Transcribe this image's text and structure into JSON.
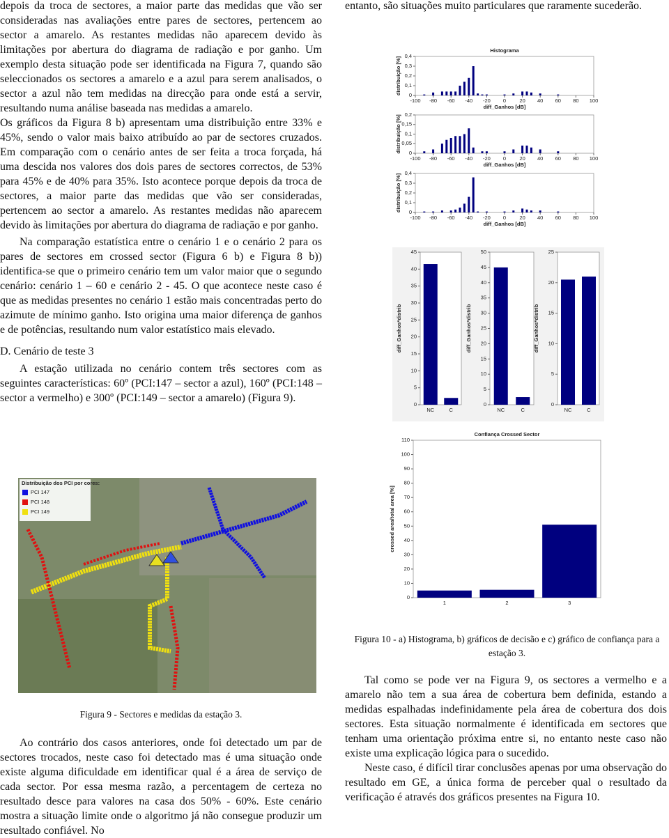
{
  "left_column": {
    "paragraphs": [
      "depois da troca de sectores, a maior parte das medidas que vão ser consideradas nas avaliações entre pares de sectores, pertencem ao sector a amarelo. As restantes medidas não aparecem devido às limitações por abertura do diagrama de radiação e por ganho. Um exemplo desta situação pode ser identificada na Figura 7, quando são seleccionados os sectores a amarelo e a azul para serem analisados, o sector a azul não tem medidas na direcção para onde está a servir, resultando numa análise baseada nas medidas a amarelo.",
      "Os gráficos da Figura 8 b) apresentam uma distribuição entre 33% e 45%, sendo o valor mais baixo atribuído ao par de sectores cruzados. Em comparação com o cenário antes de ser feita a troca forçada, há uma descida nos valores dos dois pares de sectores correctos, de 53% para 45% e de 40% para 35%. Isto acontece porque depois da troca de sectores, a maior parte das medidas que vão ser consideradas, pertencem ao sector a amarelo. As restantes medidas não aparecem devido às limitações por abertura do diagrama de radiação e por ganho.",
      "Na comparação estatística entre o cenário 1 e o cenário 2 para os pares de sectores em crossed sector (Figura 6 b) e Figura 8 b)) identifica-se que o primeiro cenário tem um valor maior que o segundo cenário: cenário 1 – 60 e cenário 2 - 45. O que acontece neste caso é que as medidas presentes no cenário 1 estão mais concentradas perto do azimute de mínimo ganho. Isto origina uma maior diferença de ganhos e de potências, resultando num valor estatístico mais elevado."
    ],
    "heading": "D. Cenário de teste 3",
    "paragraph_after_heading": "A estação utilizada no cenário contem três sectores com as seguintes características: 60º (PCI:147 – sector a azul), 160º (PCI:148 – sector a vermelho) e 300º (PCI:149 – sector a amarelo) (Figura 9).",
    "figure_9_caption": "Figura 9 - Sectores e medidas da estação 3.",
    "last_paragraph": "Ao contrário dos casos anteriores, onde foi detectado um par de sectores trocados, neste caso foi detectado mas é uma situação onde existe alguma dificuldade em identificar qual é a área de serviço de cada sector. Por essa mesma razão, a percentagem de certeza no resultado desce para valores na casa dos 50% - 60%. Este cenário mostra a situação limite onde o algoritmo já não consegue produzir um resultado confiável. No"
  },
  "map": {
    "legend_title": "Distribuição dos PCI por cores:",
    "legend": [
      {
        "label": "PCI 147",
        "color": "#1010e0"
      },
      {
        "label": "PCI 148",
        "color": "#e01010"
      },
      {
        "label": "PCI 149",
        "color": "#f0e010"
      }
    ]
  },
  "right_column": {
    "top_text": "entanto, são situações muito particulares que raramente sucederão.",
    "figure_10_caption": "Figura 10 - a) Histograma, b) gráficos de decisão e c) gráfico de confiança para a estação 3.",
    "paragraphs": [
      "Tal como se pode ver na Figura 9, os sectores a vermelho e a amarelo não tem a sua área de cobertura bem definida, estando a medidas espalhadas indefinidamente pela área de cobertura dos dois sectores. Esta situação normalmente é identificada em sectores que tenham uma orientação próxima entre si, no entanto neste caso não existe uma explicação lógica para o sucedido.",
      "Neste caso, é difícil tirar conclusões apenas por uma observação do resultado em GE, a única forma de perceber qual o resultado da verificação é através dos gráficos presentes na Figura 10."
    ]
  },
  "chart_data": [
    {
      "type": "bar",
      "title": "Histograma",
      "x_label": "diff_Ganhos [dB]",
      "y_label": "distribuição [%]",
      "color": "#00007f",
      "x": [
        -90,
        -80,
        -70,
        -65,
        -60,
        -55,
        -50,
        -45,
        -40,
        -35,
        -30,
        -25,
        -20,
        0,
        10,
        20,
        25,
        30,
        40,
        60
      ],
      "values": [
        0.01,
        0.03,
        0.04,
        0.04,
        0.04,
        0.04,
        0.1,
        0.14,
        0.18,
        0.3,
        0.02,
        0.01,
        0.01,
        0.01,
        0.02,
        0.04,
        0.04,
        0.03,
        0.02,
        0.01
      ],
      "xlim": [
        -100,
        100
      ],
      "xticks": [
        -100,
        -80,
        -60,
        -40,
        -20,
        0,
        20,
        40,
        60,
        80,
        100
      ],
      "ylim": [
        0,
        0.4
      ],
      "yticks": [
        0,
        {
          "value": 0.1,
          "label": "0,1"
        },
        {
          "value": 0.2,
          "label": "0,2"
        },
        {
          "value": 0.3,
          "label": "0,3"
        },
        {
          "value": 0.4,
          "label": "0,4"
        }
      ]
    },
    {
      "type": "bar",
      "x_label": "diff_Ganhos [dB]",
      "y_label": "distribuição [%]",
      "color": "#00007f",
      "x": [
        -90,
        -80,
        -70,
        -65,
        -60,
        -55,
        -50,
        -45,
        -40,
        -35,
        -25,
        -20,
        0,
        10,
        20,
        25,
        30,
        40,
        60
      ],
      "values": [
        0.01,
        0.02,
        0.05,
        0.07,
        0.08,
        0.09,
        0.09,
        0.1,
        0.13,
        0.03,
        0.01,
        0.01,
        0.01,
        0.02,
        0.04,
        0.04,
        0.03,
        0.02,
        0.01
      ],
      "xlim": [
        -100,
        100
      ],
      "xticks": [
        -100,
        -80,
        -60,
        -40,
        -20,
        0,
        20,
        40,
        60,
        80,
        100
      ],
      "ylim": [
        0,
        0.2
      ],
      "yticks": [
        0,
        {
          "value": 0.05,
          "label": "0,05"
        },
        {
          "value": 0.1,
          "label": "0,1"
        },
        {
          "value": 0.15,
          "label": "0,15"
        },
        {
          "value": 0.2,
          "label": "0,2"
        }
      ]
    },
    {
      "type": "bar",
      "x_label": "diff_Ganhos [dB]",
      "y_label": "distribuição [%]",
      "color": "#00007f",
      "x": [
        -90,
        -80,
        -70,
        -60,
        -55,
        -50,
        -45,
        -40,
        -35,
        -30,
        -20,
        0,
        10,
        20,
        25,
        30,
        40,
        60
      ],
      "values": [
        0.01,
        0.01,
        0.02,
        0.02,
        0.03,
        0.05,
        0.09,
        0.16,
        0.36,
        0.01,
        0.01,
        0.01,
        0.02,
        0.04,
        0.03,
        0.02,
        0.02,
        0.01
      ],
      "xlim": [
        -100,
        100
      ],
      "xticks": [
        -100,
        -80,
        -60,
        -40,
        -20,
        0,
        20,
        40,
        60,
        80,
        100
      ],
      "ylim": [
        0,
        0.4
      ],
      "yticks": [
        0,
        {
          "value": 0.1,
          "label": "0,1"
        },
        {
          "value": 0.2,
          "label": "0,2"
        },
        {
          "value": 0.3,
          "label": "0,3"
        },
        {
          "value": 0.4,
          "label": "0,4"
        }
      ]
    },
    {
      "type": "bar",
      "y_label": "diff_Ganhos*distrib",
      "color": "#00007f",
      "categories": [
        "NC",
        "C"
      ],
      "values": [
        41.5,
        2
      ],
      "ylim": [
        0,
        45
      ],
      "yticks": [
        0,
        5,
        10,
        15,
        20,
        25,
        30,
        35,
        40,
        45
      ]
    },
    {
      "type": "bar",
      "y_label": "diff_Ganhos*distrib",
      "color": "#00007f",
      "categories": [
        "NC",
        "C"
      ],
      "values": [
        45,
        2.5
      ],
      "ylim": [
        0,
        50
      ],
      "yticks": [
        0,
        5,
        10,
        15,
        20,
        25,
        30,
        35,
        40,
        45,
        50
      ]
    },
    {
      "type": "bar",
      "y_label": "diff_Ganhos*distrib",
      "color": "#00007f",
      "categories": [
        "NC",
        "C"
      ],
      "values": [
        20.5,
        21
      ],
      "ylim": [
        0,
        25
      ],
      "yticks": [
        0,
        5,
        10,
        15,
        20,
        25
      ]
    },
    {
      "type": "bar",
      "title": "Confiança Crossed Sector",
      "y_label": "crossed area/total area [%]",
      "color": "#00007f",
      "categories": [
        "1",
        "2",
        "3"
      ],
      "values": [
        5,
        5.5,
        51
      ],
      "ylim": [
        0,
        110
      ],
      "yticks": [
        0,
        10,
        20,
        30,
        40,
        50,
        60,
        70,
        80,
        90,
        100,
        110
      ]
    }
  ]
}
